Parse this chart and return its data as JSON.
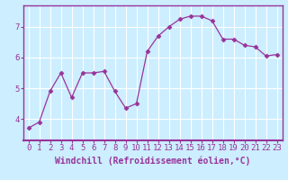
{
  "x": [
    0,
    1,
    2,
    3,
    4,
    5,
    6,
    7,
    8,
    9,
    10,
    11,
    12,
    13,
    14,
    15,
    16,
    17,
    18,
    19,
    20,
    21,
    22,
    23
  ],
  "y": [
    3.7,
    3.9,
    4.9,
    5.5,
    4.7,
    5.5,
    5.5,
    5.55,
    4.9,
    4.35,
    4.5,
    6.2,
    6.7,
    7.0,
    7.25,
    7.35,
    7.35,
    7.2,
    6.6,
    6.6,
    6.4,
    6.35,
    6.05,
    6.1
  ],
  "line_color": "#993399",
  "marker": "D",
  "marker_size": 2.5,
  "bg_color": "#cceeff",
  "grid_color": "#ffffff",
  "xlabel": "Windchill (Refroidissement éolien,°C)",
  "xlabel_fontsize": 7,
  "tick_fontsize": 6.5,
  "ylim": [
    3.3,
    7.7
  ],
  "yticks": [
    4,
    5,
    6,
    7
  ],
  "xlim": [
    -0.5,
    23.5
  ],
  "xticks": [
    0,
    1,
    2,
    3,
    4,
    5,
    6,
    7,
    8,
    9,
    10,
    11,
    12,
    13,
    14,
    15,
    16,
    17,
    18,
    19,
    20,
    21,
    22,
    23
  ],
  "border_color": "#993399",
  "tick_color": "#993399",
  "label_color": "#993399"
}
